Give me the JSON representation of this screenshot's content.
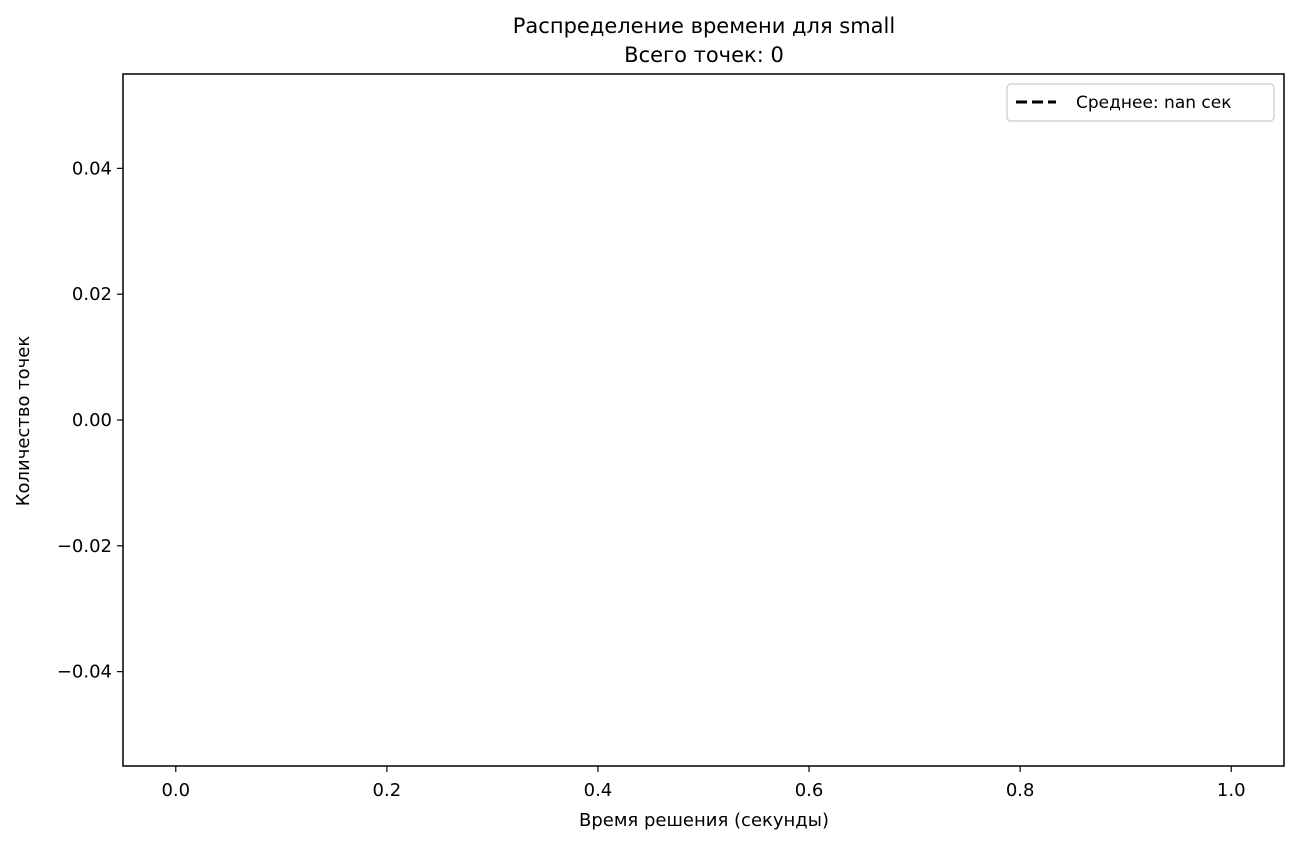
{
  "chart_data": {
    "type": "histogram",
    "title_lines": [
      "Распределение времени для small",
      "Всего точек: 0"
    ],
    "xlabel": "Время решения (секунды)",
    "ylabel": "Количество точек",
    "xlim": [
      -0.05,
      1.05
    ],
    "ylim": [
      -0.055,
      0.055
    ],
    "x_ticks": [
      0.0,
      0.2,
      0.4,
      0.6,
      0.8,
      1.0
    ],
    "x_tick_labels": [
      "0.0",
      "0.2",
      "0.4",
      "0.6",
      "0.8",
      "1.0"
    ],
    "y_ticks": [
      -0.04,
      -0.02,
      0.0,
      0.02,
      0.04
    ],
    "y_tick_labels": [
      "−0.04",
      "−0.02",
      "0.00",
      "0.02",
      "0.04"
    ],
    "values": [],
    "grid": false,
    "legend": {
      "position": "top-right",
      "entries": [
        {
          "label": "Среднее: nan сек",
          "style": "dashed",
          "color": "#000000"
        }
      ]
    }
  }
}
